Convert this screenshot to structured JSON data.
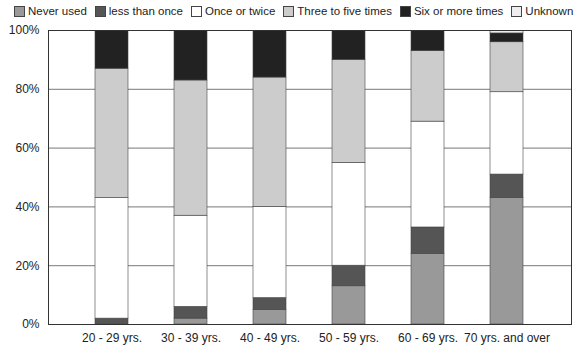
{
  "chart_data": {
    "type": "bar",
    "stacked": true,
    "grid": true,
    "legend": "top",
    "categories": [
      "20 - 29 yrs.",
      "30 - 39 yrs.",
      "40 - 49 yrs.",
      "50 - 59 yrs.",
      "60 - 69 yrs.",
      "70 yrs. and over"
    ],
    "series": [
      {
        "name": "Never used",
        "color": "#999999",
        "values": [
          0,
          2,
          5,
          13,
          24,
          43
        ]
      },
      {
        "name": "less than once",
        "color": "#555555",
        "values": [
          2,
          4,
          4,
          7,
          9,
          8
        ]
      },
      {
        "name": "Once or twice",
        "color": "#ffffff",
        "values": [
          41,
          31,
          31,
          35,
          36,
          28
        ]
      },
      {
        "name": "Three to five times",
        "color": "#cccccc",
        "values": [
          44,
          46,
          44,
          35,
          24,
          17
        ]
      },
      {
        "name": "Six or more times",
        "color": "#222222",
        "values": [
          13,
          17,
          16,
          10,
          7,
          3
        ]
      },
      {
        "name": "Unknown",
        "color": "#eeeeee",
        "values": [
          0,
          0,
          0,
          0,
          0,
          1
        ]
      }
    ],
    "ylim": [
      0,
      100
    ],
    "yticks": [
      {
        "value": 0,
        "label": "0%"
      },
      {
        "value": 20,
        "label": "20%"
      },
      {
        "value": 40,
        "label": "40%"
      },
      {
        "value": 60,
        "label": "60%"
      },
      {
        "value": 80,
        "label": "80%"
      },
      {
        "value": 100,
        "label": "100%"
      }
    ]
  }
}
